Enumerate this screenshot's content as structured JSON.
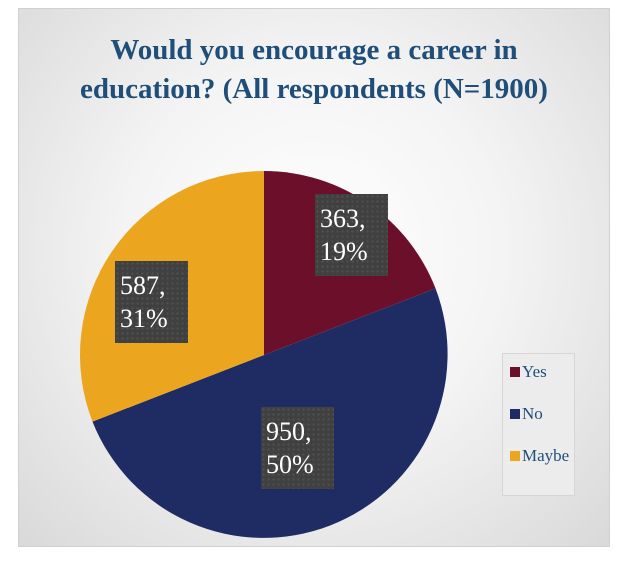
{
  "chart_data": {
    "type": "pie",
    "title": "Would you encourage a career in education? (All respondents (N=1900)",
    "categories": [
      "Yes",
      "No",
      "Maybe"
    ],
    "values": [
      363,
      950,
      587
    ],
    "percentages": [
      19,
      50,
      31
    ],
    "data_labels": [
      {
        "value": "363,",
        "percent": "19%"
      },
      {
        "value": "950,",
        "percent": "50%"
      },
      {
        "value": "587,",
        "percent": "31%"
      }
    ],
    "colors": [
      "#6b0f2b",
      "#1f2c63",
      "#eba51f"
    ],
    "legend_placement": "right"
  }
}
